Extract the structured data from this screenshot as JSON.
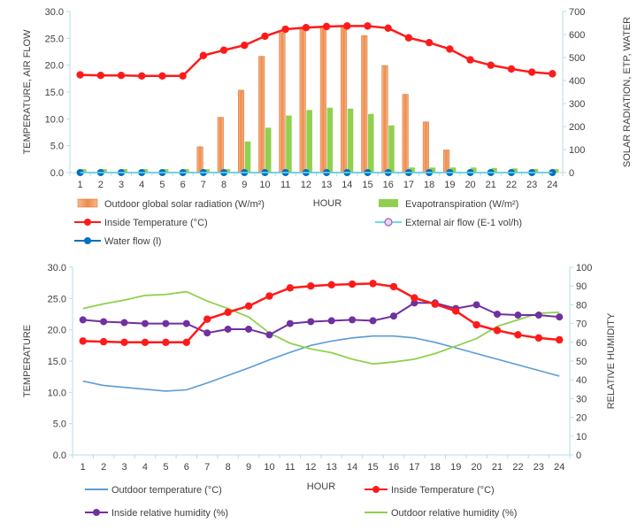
{
  "chart_data": [
    {
      "type": "bar",
      "title": "",
      "xlabel": "HOUR",
      "ylabel_left": "TEMPERATURE, AIR FLOW",
      "ylabel_right": "SOLAR RADIATION, ETP, WATER",
      "ylim_left": [
        0,
        30
      ],
      "yticks_left": [
        "0.0",
        "5.0",
        "10.0",
        "15.0",
        "20.0",
        "25.0",
        "30.0"
      ],
      "ylim_right": [
        0,
        700
      ],
      "yticks_right": [
        "0",
        "100",
        "200",
        "300",
        "400",
        "500",
        "600",
        "700"
      ],
      "categories": [
        "1",
        "2",
        "3",
        "4",
        "5",
        "6",
        "7",
        "8",
        "9",
        "10",
        "11",
        "12",
        "13",
        "14",
        "15",
        "16",
        "17",
        "18",
        "19",
        "20",
        "21",
        "22",
        "23",
        "24"
      ],
      "series": [
        {
          "name": "Outdoor global solar radiation (W/m²)",
          "axis": "right",
          "kind": "bar",
          "color": "#f4a460",
          "values": [
            0,
            0,
            0,
            0,
            0,
            0,
            112,
            240,
            358,
            505,
            608,
            630,
            635,
            638,
            595,
            465,
            340,
            220,
            98,
            0,
            0,
            0,
            0,
            0
          ]
        },
        {
          "name": "Evapotranspiration (W/m²)",
          "axis": "right",
          "kind": "bar",
          "color": "#8fd14f",
          "values": [
            15,
            15,
            15,
            15,
            15,
            15,
            15,
            15,
            135,
            195,
            248,
            272,
            282,
            278,
            255,
            205,
            22,
            22,
            22,
            22,
            20,
            18,
            16,
            15
          ]
        },
        {
          "name": "Inside Temperature (°C)",
          "axis": "left",
          "kind": "line",
          "color": "#ff1a1a",
          "values": [
            18.2,
            18.1,
            18.1,
            18.0,
            18.0,
            18.0,
            21.8,
            22.8,
            23.7,
            25.4,
            26.7,
            27.0,
            27.2,
            27.3,
            27.3,
            26.9,
            25.1,
            24.2,
            23.0,
            21.0,
            20.0,
            19.3,
            18.7,
            18.4
          ]
        },
        {
          "name": "External air flow (E-1 vol/h)",
          "axis": "left",
          "kind": "line",
          "color": "#6ddbe8",
          "values": [
            0,
            0,
            0,
            0,
            0,
            0,
            0,
            0,
            0,
            0,
            0,
            0,
            0,
            0,
            0,
            0,
            0,
            0,
            0,
            0,
            0,
            0,
            0,
            0
          ]
        },
        {
          "name": "Water flow (l)",
          "axis": "right",
          "kind": "line",
          "color": "#0070c0",
          "values": [
            0,
            0,
            0,
            0,
            0,
            0,
            0,
            0,
            0,
            0,
            0,
            0,
            0,
            0,
            0,
            0,
            0,
            0,
            0,
            0,
            0,
            0,
            0,
            0
          ]
        }
      ]
    },
    {
      "type": "line",
      "title": "",
      "xlabel": "HOUR",
      "ylabel_left": "TEMPERATURE",
      "ylabel_right": "RELATIVE HUMIDITY",
      "ylim_left": [
        0,
        30
      ],
      "yticks_left": [
        "0.0",
        "5.0",
        "10.0",
        "15.0",
        "20.0",
        "25.0",
        "30.0"
      ],
      "ylim_right": [
        0,
        100
      ],
      "yticks_right": [
        "0",
        "10",
        "20",
        "30",
        "40",
        "50",
        "60",
        "70",
        "80",
        "90",
        "100"
      ],
      "categories": [
        "1",
        "2",
        "3",
        "4",
        "5",
        "6",
        "7",
        "8",
        "9",
        "10",
        "11",
        "12",
        "13",
        "14",
        "15",
        "16",
        "17",
        "18",
        "19",
        "20",
        "21",
        "22",
        "23",
        "24"
      ],
      "series": [
        {
          "name": "Outdoor temperature (°C)",
          "axis": "left",
          "color": "#5b9bd5",
          "marker": false,
          "values": [
            11.8,
            11.1,
            10.8,
            10.5,
            10.2,
            10.4,
            11.5,
            12.7,
            13.9,
            15.2,
            16.4,
            17.5,
            18.2,
            18.7,
            19.0,
            19.0,
            18.7,
            18.0,
            17.1,
            16.2,
            15.3,
            14.4,
            13.5,
            12.6
          ]
        },
        {
          "name": "Inside Temperature (°C)",
          "axis": "left",
          "color": "#ff1a1a",
          "marker": true,
          "values": [
            18.2,
            18.1,
            18.0,
            18.0,
            18.0,
            18.0,
            21.7,
            22.8,
            23.8,
            25.4,
            26.7,
            27.0,
            27.2,
            27.3,
            27.4,
            26.9,
            25.1,
            24.1,
            23.0,
            20.8,
            19.9,
            19.2,
            18.7,
            18.4
          ]
        },
        {
          "name": "Inside relative humidity (%)",
          "axis": "right",
          "color": "#7030a0",
          "marker": true,
          "values": [
            72,
            71,
            70.5,
            70,
            70,
            70,
            65,
            67,
            67,
            64,
            70,
            71,
            71.5,
            72,
            71.5,
            74,
            81,
            81,
            78,
            80,
            75,
            74.5,
            74.5,
            73.5
          ]
        },
        {
          "name": "Outdoor relative humidity (%)",
          "axis": "right",
          "color": "#8fd14f",
          "marker": false,
          "values": [
            78,
            80.5,
            82.5,
            85,
            85.5,
            87,
            82,
            78,
            73.5,
            65,
            59.5,
            56.5,
            54.5,
            51,
            48.5,
            49.5,
            51,
            54,
            58,
            62,
            68.5,
            72,
            75.5,
            76
          ]
        }
      ]
    }
  ]
}
